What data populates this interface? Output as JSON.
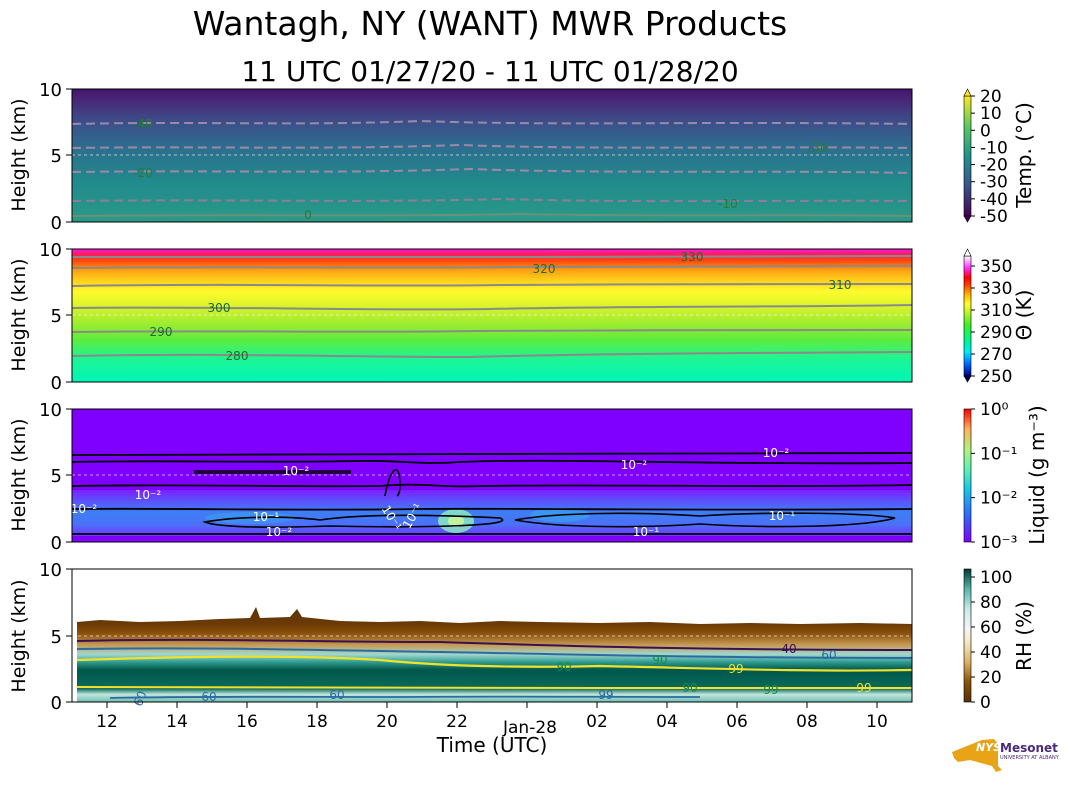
{
  "title": "Wantagh, NY (WANT) MWR Products",
  "subtitle": "11 UTC 01/27/20 - 11 UTC 01/28/20",
  "xaxis": {
    "label": "Time (UTC)",
    "ticks": [
      "12",
      "14",
      "16",
      "18",
      "20",
      "22",
      "02",
      "04",
      "06",
      "08",
      "10"
    ],
    "day_label": "Jan-28"
  },
  "logo": {
    "nys": "NYS",
    "name": "Mesonet",
    "sub": "UNIVERSITY AT ALBANY"
  },
  "chart_data": [
    {
      "type": "heatmap",
      "name": "Temperature",
      "ylabel": "Height (km)",
      "ylim": [
        0,
        10
      ],
      "yticks": [
        "0",
        "5",
        "10"
      ],
      "xlim_hours_utc": [
        11,
        35
      ],
      "colorbar": {
        "label": "Temp. (°C)",
        "ticks": [
          "20",
          "10",
          "0",
          "-10",
          "-20",
          "-30",
          "-40",
          "-50"
        ],
        "range": [
          -50,
          20
        ],
        "colormap": "viridis"
      },
      "contours": [
        {
          "label": "-40",
          "height_km": 7.4
        },
        {
          "label": "-30",
          "height_km": 5.5
        },
        {
          "label": "-20",
          "height_km": 3.7
        },
        {
          "label": "-10",
          "height_km": 1.6
        },
        {
          "label": "0",
          "height_km": 0.4
        }
      ]
    },
    {
      "type": "heatmap",
      "name": "Potential Temperature",
      "ylabel": "Height (km)",
      "ylim": [
        0,
        10
      ],
      "yticks": [
        "0",
        "5",
        "10"
      ],
      "colorbar": {
        "label": "Θ (K)",
        "ticks": [
          "350",
          "330",
          "310",
          "290",
          "270",
          "250"
        ],
        "range": [
          250,
          360
        ],
        "colormap": "gist_ncar"
      },
      "contours": [
        {
          "label": "280",
          "height_km": 2.0
        },
        {
          "label": "290",
          "height_km": 3.8
        },
        {
          "label": "300",
          "height_km": 5.6
        },
        {
          "label": "310",
          "height_km": 7.3
        },
        {
          "label": "320",
          "height_km": 8.6
        },
        {
          "label": "330",
          "height_km": 9.5
        }
      ]
    },
    {
      "type": "heatmap",
      "name": "Liquid Water",
      "ylabel": "Height (km)",
      "ylim": [
        0,
        10
      ],
      "yticks": [
        "0",
        "5",
        "10"
      ],
      "colorbar": {
        "label": "Liquid (g m⁻³)",
        "ticks": [
          "10⁰",
          "10⁻¹",
          "10⁻²",
          "10⁻³"
        ],
        "range_log10": [
          -3,
          0
        ],
        "colormap": "rainbow"
      },
      "contour_labels": [
        "10⁻²",
        "10⁻²",
        "10⁻²",
        "10⁻²",
        "10⁻²",
        "10⁻¹",
        "10⁻²",
        "10⁻¹",
        "10⁻¹",
        "10⁻¹",
        "10⁻¹"
      ]
    },
    {
      "type": "heatmap",
      "name": "Relative Humidity",
      "ylabel": "Height (km)",
      "ylim": [
        0,
        10
      ],
      "yticks": [
        "0",
        "5",
        "10"
      ],
      "colorbar": {
        "label": "RH (%)",
        "ticks": [
          "100",
          "80",
          "60",
          "40",
          "20",
          "0"
        ],
        "range": [
          0,
          105
        ],
        "colormap": "BrBG"
      },
      "contour_labels": [
        "40",
        "60",
        "90",
        "90",
        "99",
        "99",
        "90",
        "99",
        "99",
        "60",
        "60",
        "60"
      ]
    }
  ]
}
